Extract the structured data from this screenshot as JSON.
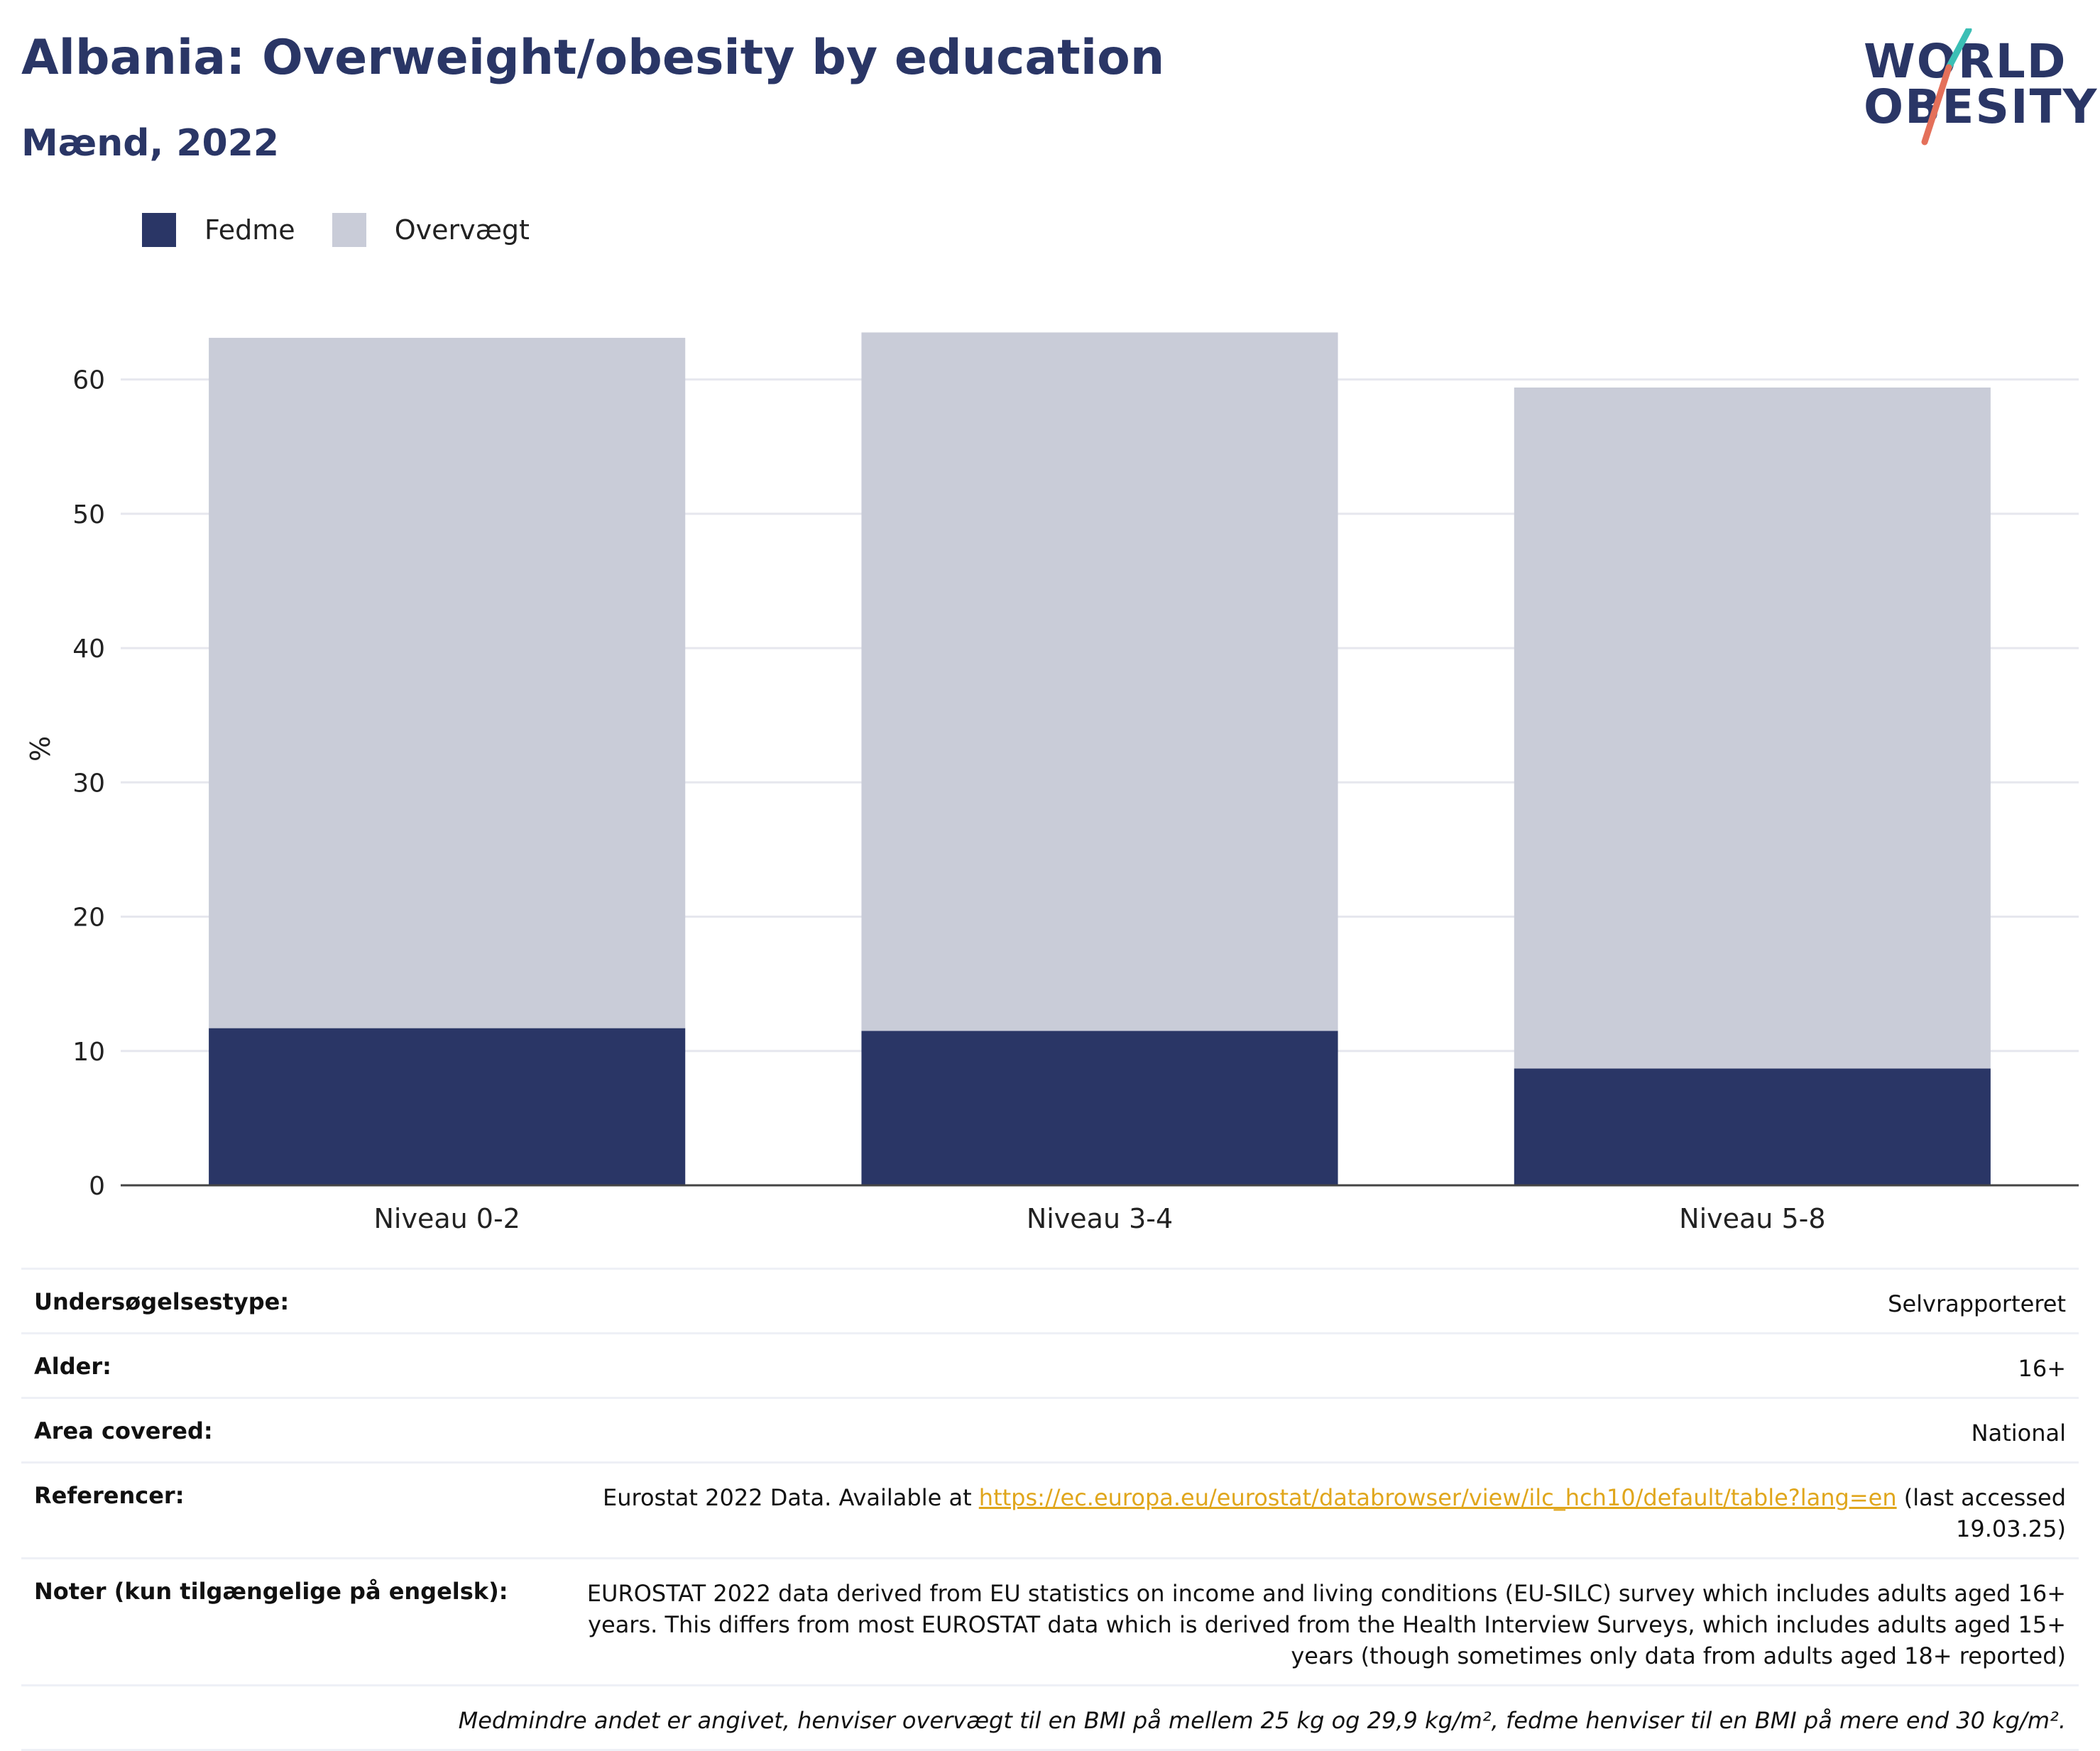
{
  "header": {
    "title": "Albania: Overweight/obesity by education",
    "subtitle": "Mænd, 2022"
  },
  "logo": {
    "line1": "WORLD",
    "line2": "OBESITY",
    "colors": {
      "text": "#2a3666",
      "slash_top": "#3bbfb5",
      "slash_bottom": "#e4705a"
    }
  },
  "legend": [
    {
      "label": "Fedme",
      "color": "#2a3666"
    },
    {
      "label": "Overvægt",
      "color": "#c9ccd8"
    }
  ],
  "chart_data": {
    "type": "bar",
    "stacked": true,
    "categories": [
      "Niveau 0-2",
      "Niveau 3-4",
      "Niveau 5-8"
    ],
    "series": [
      {
        "name": "Fedme",
        "values": [
          11.7,
          11.5,
          8.7
        ],
        "color": "#2a3666"
      },
      {
        "name": "Overvægt",
        "values": [
          51.4,
          52.0,
          50.7
        ],
        "color": "#c9ccd8"
      }
    ],
    "ylabel": "%",
    "ylim": [
      0,
      65
    ],
    "yticks": [
      0,
      10,
      20,
      30,
      40,
      50,
      60
    ],
    "grid": true,
    "legend_position": "top-left"
  },
  "info": {
    "survey_type": {
      "label": "Undersøgelsestype:",
      "value": "Selvrapporteret"
    },
    "age": {
      "label": "Alder:",
      "value": "16+"
    },
    "area": {
      "label": "Area covered:",
      "value": "National"
    },
    "references": {
      "label": "Referencer:",
      "prefix": "Eurostat 2022 Data. Available at ",
      "link": "https://ec.europa.eu/eurostat/databrowser/view/ilc_hch10/default/table?lang=en",
      "suffix": " (last accessed 19.03.25)"
    },
    "notes": {
      "label": "Noter (kun tilgængelige på engelsk):",
      "value": "EUROSTAT 2022 data derived from EU statistics on income and living conditions (EU-SILC) survey which includes adults aged 16+ years. This differs from most EUROSTAT data which is derived from the Health Interview Surveys, which includes adults aged 15+ years (though sometimes only data from adults aged 18+ reported)"
    },
    "footnote": "Medmindre andet er angivet, henviser overvægt til en BMI på mellem 25 kg og 29,9 kg/m², fedme henviser til en BMI på mere end 30 kg/m²."
  }
}
